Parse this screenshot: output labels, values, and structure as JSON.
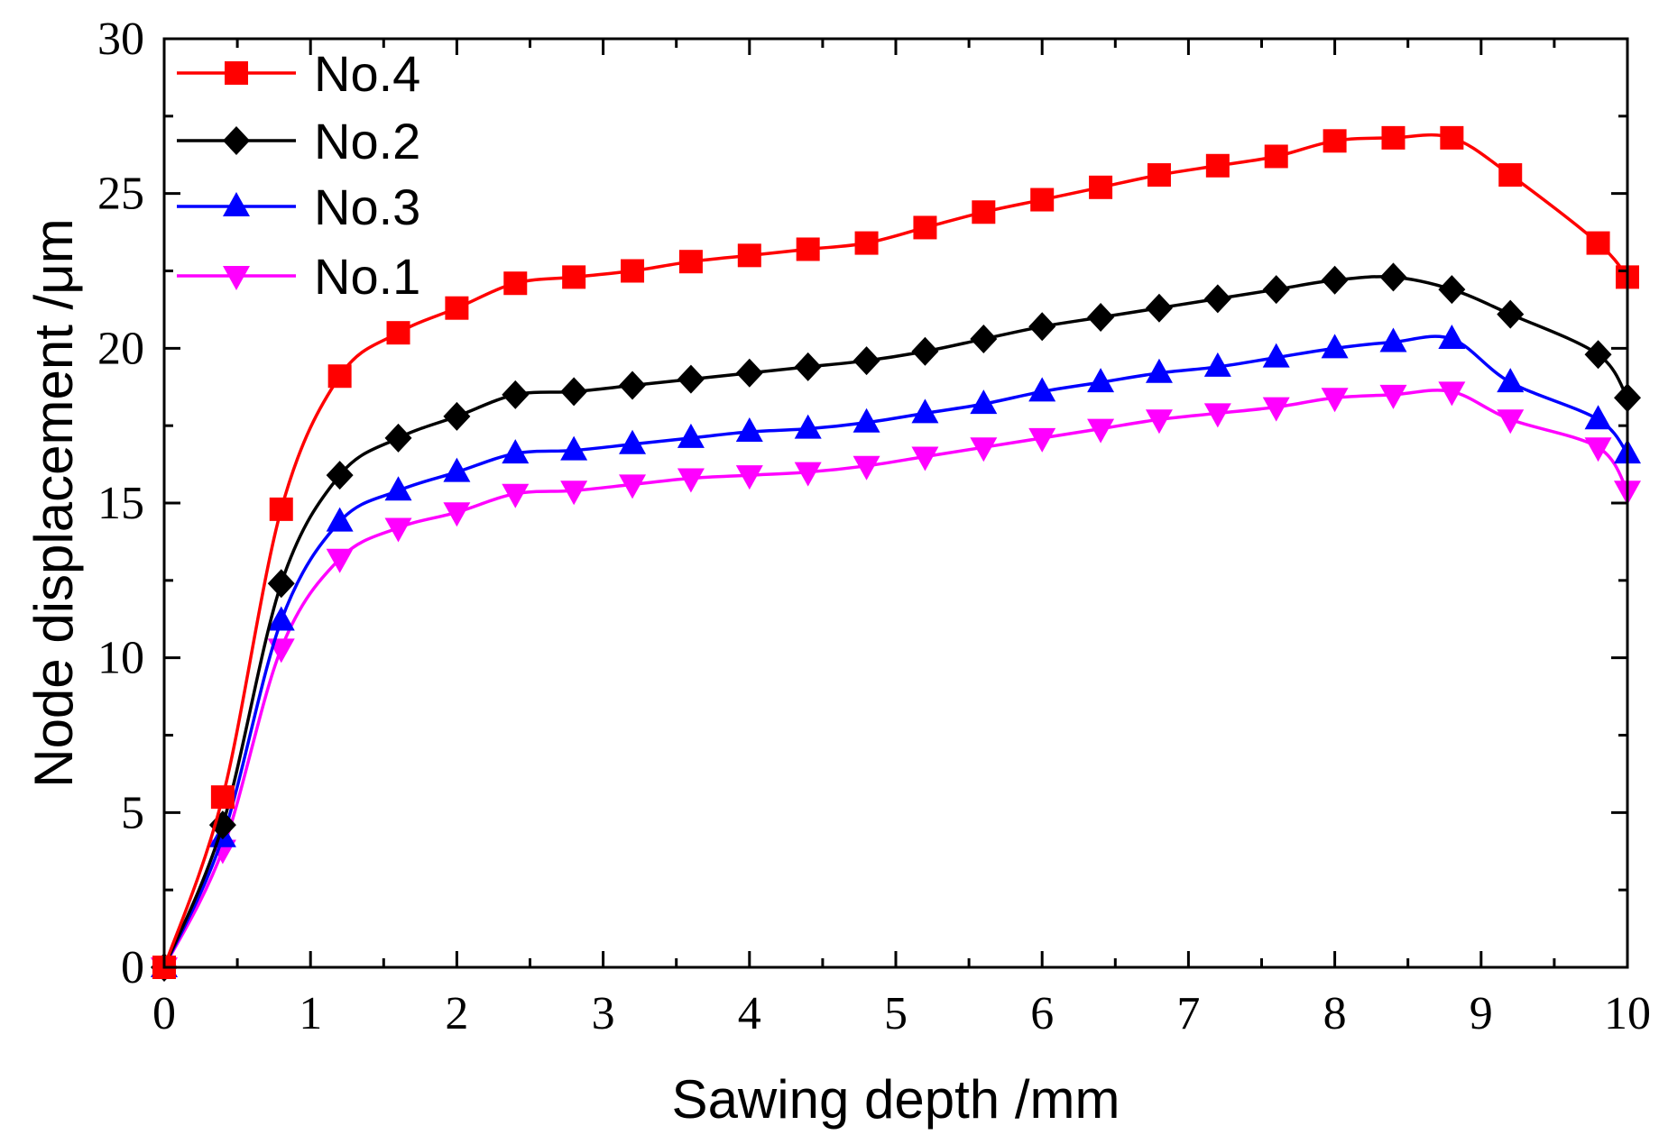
{
  "chart_data": {
    "type": "line",
    "xlabel": "Sawing depth /mm",
    "ylabel": "Node displacement /μm",
    "xlim": [
      0,
      10
    ],
    "ylim": [
      0,
      30
    ],
    "x_ticks": [
      "0",
      "1",
      "2",
      "3",
      "4",
      "5",
      "6",
      "7",
      "8",
      "9",
      "10"
    ],
    "y_ticks": [
      "0",
      "5",
      "10",
      "15",
      "20",
      "25",
      "30"
    ],
    "grid": false,
    "legend_position": "top-left",
    "x": [
      0,
      0.4,
      0.8,
      1.2,
      1.6,
      2.0,
      2.4,
      2.8,
      3.2,
      3.6,
      4.0,
      4.4,
      4.8,
      5.2,
      5.6,
      6.0,
      6.4,
      6.8,
      7.2,
      7.6,
      8.0,
      8.4,
      8.8,
      9.2,
      9.8,
      10.0
    ],
    "series": [
      {
        "name": "No.4",
        "color": "#ff0000",
        "marker": "square",
        "values": [
          0,
          5.5,
          14.8,
          19.1,
          20.5,
          21.3,
          22.1,
          22.3,
          22.5,
          22.8,
          23.0,
          23.2,
          23.4,
          23.9,
          24.4,
          24.8,
          25.2,
          25.6,
          25.9,
          26.2,
          26.7,
          26.8,
          26.8,
          25.6,
          23.4,
          22.3
        ]
      },
      {
        "name": "No.2",
        "color": "#000000",
        "marker": "diamond",
        "values": [
          0,
          4.6,
          12.4,
          15.9,
          17.1,
          17.8,
          18.5,
          18.6,
          18.8,
          19.0,
          19.2,
          19.4,
          19.6,
          19.9,
          20.3,
          20.7,
          21.0,
          21.3,
          21.6,
          21.9,
          22.2,
          22.3,
          21.9,
          21.1,
          19.8,
          18.4
        ]
      },
      {
        "name": "No.3",
        "color": "#0000ff",
        "marker": "triangle-up",
        "values": [
          0,
          4.2,
          11.2,
          14.4,
          15.4,
          16.0,
          16.6,
          16.7,
          16.9,
          17.1,
          17.3,
          17.4,
          17.6,
          17.9,
          18.2,
          18.6,
          18.9,
          19.2,
          19.4,
          19.7,
          20.0,
          20.2,
          20.3,
          18.9,
          17.7,
          16.6
        ]
      },
      {
        "name": "No.1",
        "color": "#ff00ff",
        "marker": "triangle-down",
        "values": [
          0,
          3.8,
          10.3,
          13.2,
          14.2,
          14.7,
          15.3,
          15.4,
          15.6,
          15.8,
          15.9,
          16.0,
          16.2,
          16.5,
          16.8,
          17.1,
          17.4,
          17.7,
          17.9,
          18.1,
          18.4,
          18.5,
          18.6,
          17.7,
          16.8,
          15.4
        ]
      }
    ]
  }
}
